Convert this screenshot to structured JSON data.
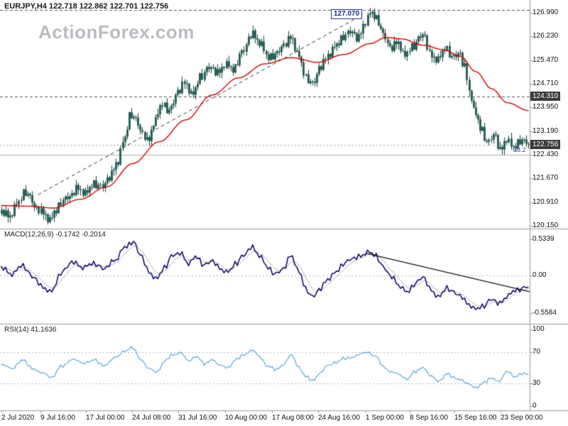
{
  "header": {
    "text": "EURJPY,H4 122.718 122.862 122.701 122.756"
  },
  "watermark": {
    "text": "ActionForex.com"
  },
  "indicators": {
    "macd_label": "MACD(12,26,9) -0.1742 -0.2014",
    "rsi_label": "RSI(14) 41.1636"
  },
  "annotations": {
    "peak_label": "127.070",
    "fib_label": "38.2"
  },
  "colors": {
    "candle_fill": "#2a6159",
    "candle_border": "#173f39",
    "ma_line": "#d40000",
    "macd_line": "#000066",
    "macd_signal": "#c8a8a8",
    "rsi_line": "#58a7d7",
    "level_dashed": "#555555",
    "fib_line": "#b0b0b0",
    "last_price_line": "#999999",
    "trendline": "#333333",
    "macd_trendline": "#111111",
    "axis_text": "#111111",
    "price_box_bg": "#3c3c3c",
    "price_box_text": "#ffffff",
    "watermark": "#b9bdc1",
    "separator": "#9b9b9b",
    "grid_dotted": "#b5b5b5",
    "annotation_text": "#1b2a8c",
    "fib_label_text": "#3355aa"
  },
  "chart_data": {
    "type": "candlestick",
    "symbol": "EURJPY",
    "timeframe": "H4",
    "title": "EURJPY,H4 122.718 122.862 122.701 122.756",
    "last_bar": {
      "open": 122.718,
      "high": 122.862,
      "low": 122.701,
      "close": 122.756
    },
    "price": {
      "ylim": [
        119.9,
        127.4
      ],
      "ticks": [
        {
          "text": "126.990",
          "value": 126.99
        },
        {
          "text": "126.230",
          "value": 126.23
        },
        {
          "text": "125.470",
          "value": 125.47
        },
        {
          "text": "124.710",
          "value": 124.71
        },
        {
          "text": "123.950",
          "value": 123.95
        },
        {
          "text": "123.190",
          "value": 123.19
        },
        {
          "text": "122.430",
          "value": 122.43
        },
        {
          "text": "121.670",
          "value": 121.67
        },
        {
          "text": "120.910",
          "value": 120.91
        },
        {
          "text": "120.150",
          "value": 120.15
        }
      ],
      "boxed_labels": [
        {
          "text": "124.310",
          "value": 124.31,
          "name": "level-price-label"
        },
        {
          "text": "122.756",
          "value": 122.756,
          "name": "current-price-label"
        }
      ],
      "levels": [
        {
          "value": 127.07,
          "style": "dashed"
        },
        {
          "value": 124.31,
          "style": "dashed"
        },
        {
          "value": 122.43,
          "style": "fib",
          "label": "38.2"
        },
        {
          "value": 122.756,
          "style": "last"
        }
      ],
      "trendline": {
        "style": "dashed",
        "points": [
          [
            0.072,
            121.15
          ],
          [
            0.685,
            126.93
          ]
        ]
      },
      "bars": 240,
      "anchors": [
        [
          0.0,
          120.6
        ],
        [
          0.015,
          120.45
        ],
        [
          0.03,
          120.85
        ],
        [
          0.045,
          121.25
        ],
        [
          0.055,
          121.05
        ],
        [
          0.065,
          120.7
        ],
        [
          0.08,
          120.55
        ],
        [
          0.092,
          120.33
        ],
        [
          0.102,
          120.6
        ],
        [
          0.115,
          120.95
        ],
        [
          0.13,
          121.1
        ],
        [
          0.145,
          121.35
        ],
        [
          0.16,
          121.2
        ],
        [
          0.175,
          121.5
        ],
        [
          0.19,
          121.4
        ],
        [
          0.205,
          121.7
        ],
        [
          0.22,
          122.2
        ],
        [
          0.232,
          122.9
        ],
        [
          0.245,
          123.75
        ],
        [
          0.255,
          123.55
        ],
        [
          0.268,
          123.1
        ],
        [
          0.278,
          122.85
        ],
        [
          0.29,
          123.5
        ],
        [
          0.305,
          124.05
        ],
        [
          0.318,
          123.85
        ],
        [
          0.335,
          124.45
        ],
        [
          0.348,
          124.75
        ],
        [
          0.362,
          124.35
        ],
        [
          0.378,
          124.95
        ],
        [
          0.395,
          125.25
        ],
        [
          0.41,
          125.05
        ],
        [
          0.425,
          125.35
        ],
        [
          0.44,
          125.15
        ],
        [
          0.455,
          125.7
        ],
        [
          0.475,
          126.3
        ],
        [
          0.49,
          126.05
        ],
        [
          0.505,
          125.55
        ],
        [
          0.52,
          125.65
        ],
        [
          0.535,
          125.95
        ],
        [
          0.55,
          126.2
        ],
        [
          0.562,
          125.65
        ],
        [
          0.578,
          124.9
        ],
        [
          0.59,
          124.7
        ],
        [
          0.605,
          125.25
        ],
        [
          0.62,
          125.65
        ],
        [
          0.635,
          125.95
        ],
        [
          0.65,
          126.25
        ],
        [
          0.663,
          126.4
        ],
        [
          0.676,
          126.15
        ],
        [
          0.69,
          126.7
        ],
        [
          0.7,
          127.0
        ],
        [
          0.712,
          126.8
        ],
        [
          0.725,
          126.25
        ],
        [
          0.738,
          125.85
        ],
        [
          0.752,
          126.05
        ],
        [
          0.765,
          125.6
        ],
        [
          0.778,
          125.9
        ],
        [
          0.8,
          126.3
        ],
        [
          0.814,
          125.6
        ],
        [
          0.828,
          125.5
        ],
        [
          0.842,
          125.85
        ],
        [
          0.856,
          125.55
        ],
        [
          0.868,
          125.7
        ],
        [
          0.878,
          125.25
        ],
        [
          0.888,
          124.45
        ],
        [
          0.898,
          123.75
        ],
        [
          0.91,
          123.25
        ],
        [
          0.922,
          122.8
        ],
        [
          0.934,
          123.1
        ],
        [
          0.946,
          122.55
        ],
        [
          0.958,
          122.95
        ],
        [
          0.97,
          122.65
        ],
        [
          0.985,
          122.9
        ],
        [
          1.0,
          122.756
        ]
      ],
      "ma_anchors": [
        [
          0.0,
          120.8
        ],
        [
          0.05,
          120.78
        ],
        [
          0.1,
          120.72
        ],
        [
          0.15,
          121.0
        ],
        [
          0.2,
          121.4
        ],
        [
          0.25,
          122.15
        ],
        [
          0.3,
          122.85
        ],
        [
          0.35,
          123.55
        ],
        [
          0.4,
          124.35
        ],
        [
          0.45,
          124.9
        ],
        [
          0.5,
          125.35
        ],
        [
          0.55,
          125.55
        ],
        [
          0.6,
          125.4
        ],
        [
          0.65,
          125.65
        ],
        [
          0.7,
          126.0
        ],
        [
          0.73,
          126.2
        ],
        [
          0.76,
          126.15
        ],
        [
          0.8,
          125.95
        ],
        [
          0.84,
          125.8
        ],
        [
          0.87,
          125.6
        ],
        [
          0.9,
          125.1
        ],
        [
          0.93,
          124.55
        ],
        [
          0.96,
          124.1
        ],
        [
          1.0,
          123.85
        ]
      ],
      "jitter_pattern": [
        0.06,
        -0.1,
        0.13,
        -0.04,
        0.02,
        -0.12,
        0.09,
        -0.02,
        0.05,
        -0.08,
        0.11,
        -0.13,
        0.03,
        0.08,
        -0.06,
        0.0
      ],
      "wick_pattern": [
        0.1,
        0.04,
        0.16,
        0.07,
        0.12,
        0.03,
        0.09,
        0.18,
        0.05,
        0.11,
        0.02,
        0.14,
        0.08,
        0.05,
        0.13,
        0.06
      ]
    },
    "macd": {
      "params": [
        12,
        26,
        9
      ],
      "current": [
        -0.1742,
        -0.2014
      ],
      "ticks": [
        {
          "text": "0.5339",
          "value": 0.5339
        },
        {
          "text": "0.00",
          "value": 0
        },
        {
          "text": "-0.5584",
          "value": -0.5584
        }
      ],
      "trendline": {
        "style": "solid",
        "points": [
          [
            0.69,
            0.33
          ],
          [
            1.0,
            -0.24
          ]
        ]
      },
      "jitter_scale": 0.3,
      "anchors": [
        [
          0.0,
          0.12
        ],
        [
          0.02,
          0.02
        ],
        [
          0.04,
          0.15
        ],
        [
          0.06,
          -0.02
        ],
        [
          0.08,
          -0.18
        ],
        [
          0.095,
          -0.24
        ],
        [
          0.115,
          0.05
        ],
        [
          0.135,
          0.2
        ],
        [
          0.155,
          0.12
        ],
        [
          0.175,
          0.18
        ],
        [
          0.195,
          0.1
        ],
        [
          0.215,
          0.22
        ],
        [
          0.235,
          0.42
        ],
        [
          0.25,
          0.5
        ],
        [
          0.265,
          0.3
        ],
        [
          0.28,
          0.05
        ],
        [
          0.295,
          -0.05
        ],
        [
          0.31,
          0.12
        ],
        [
          0.325,
          0.3
        ],
        [
          0.34,
          0.33
        ],
        [
          0.355,
          0.18
        ],
        [
          0.37,
          0.28
        ],
        [
          0.385,
          0.15
        ],
        [
          0.4,
          0.22
        ],
        [
          0.415,
          0.1
        ],
        [
          0.43,
          0.05
        ],
        [
          0.445,
          0.18
        ],
        [
          0.46,
          0.3
        ],
        [
          0.475,
          0.42
        ],
        [
          0.49,
          0.3
        ],
        [
          0.505,
          0.12
        ],
        [
          0.52,
          0.02
        ],
        [
          0.535,
          0.1
        ],
        [
          0.55,
          0.3
        ],
        [
          0.565,
          0.05
        ],
        [
          0.578,
          -0.2
        ],
        [
          0.59,
          -0.32
        ],
        [
          0.605,
          -0.2
        ],
        [
          0.62,
          -0.05
        ],
        [
          0.635,
          0.05
        ],
        [
          0.65,
          0.18
        ],
        [
          0.665,
          0.25
        ],
        [
          0.68,
          0.28
        ],
        [
          0.695,
          0.35
        ],
        [
          0.71,
          0.3
        ],
        [
          0.725,
          0.12
        ],
        [
          0.74,
          -0.02
        ],
        [
          0.755,
          -0.15
        ],
        [
          0.77,
          -0.25
        ],
        [
          0.785,
          -0.12
        ],
        [
          0.8,
          -0.02
        ],
        [
          0.815,
          -0.22
        ],
        [
          0.83,
          -0.32
        ],
        [
          0.845,
          -0.18
        ],
        [
          0.858,
          -0.25
        ],
        [
          0.87,
          -0.3
        ],
        [
          0.885,
          -0.42
        ],
        [
          0.9,
          -0.5
        ],
        [
          0.915,
          -0.45
        ],
        [
          0.93,
          -0.35
        ],
        [
          0.945,
          -0.42
        ],
        [
          0.96,
          -0.3
        ],
        [
          0.975,
          -0.22
        ],
        [
          0.99,
          -0.19
        ],
        [
          1.0,
          -0.1742
        ]
      ]
    },
    "rsi": {
      "period": 14,
      "current": 41.1636,
      "ticks": [
        {
          "text": "100",
          "value": 100
        },
        {
          "text": "70",
          "value": 70
        },
        {
          "text": "30",
          "value": 30
        },
        {
          "text": "0",
          "value": 0
        }
      ],
      "levels": [
        70,
        30
      ],
      "jitter_scale": 16,
      "anchors": [
        [
          0.0,
          55
        ],
        [
          0.02,
          48
        ],
        [
          0.04,
          60
        ],
        [
          0.06,
          50
        ],
        [
          0.08,
          42
        ],
        [
          0.095,
          37
        ],
        [
          0.115,
          52
        ],
        [
          0.135,
          62
        ],
        [
          0.155,
          55
        ],
        [
          0.175,
          60
        ],
        [
          0.195,
          54
        ],
        [
          0.215,
          62
        ],
        [
          0.235,
          72
        ],
        [
          0.25,
          76
        ],
        [
          0.265,
          62
        ],
        [
          0.28,
          48
        ],
        [
          0.295,
          44
        ],
        [
          0.31,
          58
        ],
        [
          0.325,
          68
        ],
        [
          0.34,
          70
        ],
        [
          0.355,
          58
        ],
        [
          0.37,
          65
        ],
        [
          0.385,
          55
        ],
        [
          0.4,
          62
        ],
        [
          0.415,
          52
        ],
        [
          0.43,
          50
        ],
        [
          0.445,
          60
        ],
        [
          0.46,
          68
        ],
        [
          0.475,
          73
        ],
        [
          0.49,
          64
        ],
        [
          0.505,
          52
        ],
        [
          0.52,
          48
        ],
        [
          0.535,
          55
        ],
        [
          0.55,
          66
        ],
        [
          0.565,
          50
        ],
        [
          0.578,
          38
        ],
        [
          0.59,
          34
        ],
        [
          0.605,
          44
        ],
        [
          0.62,
          52
        ],
        [
          0.635,
          57
        ],
        [
          0.65,
          62
        ],
        [
          0.665,
          65
        ],
        [
          0.68,
          67
        ],
        [
          0.695,
          70
        ],
        [
          0.71,
          65
        ],
        [
          0.725,
          52
        ],
        [
          0.74,
          45
        ],
        [
          0.755,
          40
        ],
        [
          0.77,
          35
        ],
        [
          0.785,
          45
        ],
        [
          0.8,
          52
        ],
        [
          0.815,
          38
        ],
        [
          0.83,
          32
        ],
        [
          0.845,
          42
        ],
        [
          0.858,
          38
        ],
        [
          0.87,
          36
        ],
        [
          0.885,
          28
        ],
        [
          0.9,
          24
        ],
        [
          0.915,
          30
        ],
        [
          0.93,
          38
        ],
        [
          0.945,
          32
        ],
        [
          0.96,
          45
        ],
        [
          0.975,
          38
        ],
        [
          0.99,
          43
        ],
        [
          1.0,
          41.1636
        ]
      ]
    },
    "time_axis": [
      {
        "text": "2 Jul 2020",
        "x": 2
      },
      {
        "text": "9 Jul 16:00",
        "x": 57
      },
      {
        "text": "17 Jul 00:00",
        "x": 121
      },
      {
        "text": "24 Jul 08:00",
        "x": 186
      },
      {
        "text": "31 Jul 16:00",
        "x": 251
      },
      {
        "text": "10 Aug 00:00",
        "x": 317
      },
      {
        "text": "17 Aug 08:00",
        "x": 383
      },
      {
        "text": "24 Aug 16:00",
        "x": 448
      },
      {
        "text": "1 Sep 00:00",
        "x": 515
      },
      {
        "text": "8 Sep 16:00",
        "x": 577
      },
      {
        "text": "15 Sep 16:00",
        "x": 640
      },
      {
        "text": "23 Sep 00:00",
        "x": 705
      }
    ]
  }
}
